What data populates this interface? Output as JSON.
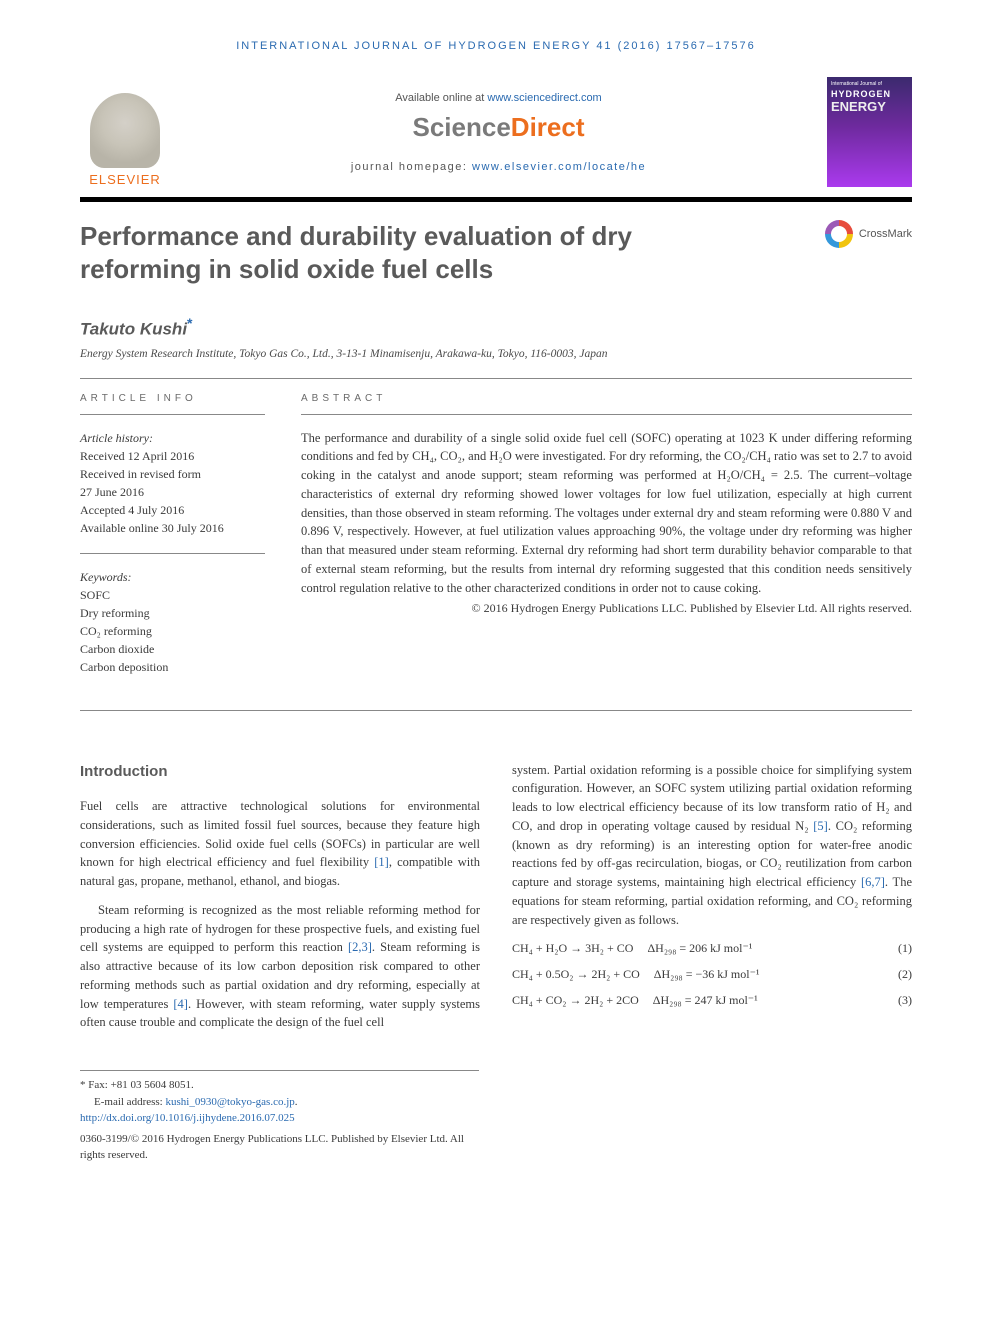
{
  "journal_header": "INTERNATIONAL JOURNAL OF HYDROGEN ENERGY 41 (2016) 17567–17576",
  "available_prefix": "Available online at ",
  "available_link": "www.sciencedirect.com",
  "sd_logo_1": "Science",
  "sd_logo_2": "Direct",
  "homepage_prefix": "journal homepage: ",
  "homepage_link": "www.elsevier.com/locate/he",
  "elsevier_label": "ELSEVIER",
  "cover": {
    "top": "International Journal of",
    "t1": "HYDROGEN",
    "t2": "ENERGY"
  },
  "crossmark": "CrossMark",
  "title": "Performance and durability evaluation of dry reforming in solid oxide fuel cells",
  "author": "Takuto Kushi",
  "affiliation": "Energy System Research Institute, Tokyo Gas Co., Ltd., 3-13-1 Minamisenju, Arakawa-ku, Tokyo, 116-0003, Japan",
  "info_label": "ARTICLE INFO",
  "abs_label": "ABSTRACT",
  "history_label": "Article history:",
  "history": {
    "received": "Received 12 April 2016",
    "revised1": "Received in revised form",
    "revised2": "27 June 2016",
    "accepted": "Accepted 4 July 2016",
    "online": "Available online 30 July 2016"
  },
  "keywords_label": "Keywords:",
  "keywords": [
    "SOFC",
    "Dry reforming",
    "CO₂ reforming",
    "Carbon dioxide",
    "Carbon deposition"
  ],
  "abstract": "The performance and durability of a single solid oxide fuel cell (SOFC) operating at 1023 K under differing reforming conditions and fed by CH₄, CO₂, and H₂O were investigated. For dry reforming, the CO₂/CH₄ ratio was set to 2.7 to avoid coking in the catalyst and anode support; steam reforming was performed at H₂O/CH₄ = 2.5. The current–voltage characteristics of external dry reforming showed lower voltages for low fuel utilization, especially at high current densities, than those observed in steam reforming. The voltages under external dry and steam reforming were 0.880 V and 0.896 V, respectively. However, at fuel utilization values approaching 90%, the voltage under dry reforming was higher than that measured under steam reforming. External dry reforming had short term durability behavior comparable to that of external steam reforming, but the results from internal dry reforming suggested that this condition needs sensitively control regulation relative to the other characterized conditions in order not to cause coking.",
  "abs_copyright": "© 2016 Hydrogen Energy Publications LLC. Published by Elsevier Ltd. All rights reserved.",
  "intro_heading": "Introduction",
  "intro_p1a": "Fuel cells are attractive technological solutions for environmental considerations, such as limited fossil fuel sources, because they feature high conversion efficiencies. Solid oxide fuel cells (SOFCs) in particular are well known for high electrical efficiency and fuel flexibility ",
  "intro_p1_ref1": "[1]",
  "intro_p1b": ", compatible with natural gas, propane, methanol, ethanol, and biogas.",
  "intro_p2a": "Steam reforming is recognized as the most reliable reforming method for producing a high rate of hydrogen for these prospective fuels, and existing fuel cell systems are equipped to perform this reaction ",
  "intro_p2_ref1": "[2,3]",
  "intro_p2b": ". Steam reforming is also attractive because of its low carbon deposition risk compared to other reforming methods such as partial oxidation and dry reforming, especially at low temperatures ",
  "intro_p2_ref2": "[4]",
  "intro_p2c": ". However, with steam reforming, water supply systems often cause trouble and complicate the design of the fuel cell",
  "col2_p1a": "system. Partial oxidation reforming is a possible choice for simplifying system configuration. However, an SOFC system utilizing partial oxidation reforming leads to low electrical efficiency because of its low transform ratio of H₂ and CO, and drop in operating voltage caused by residual N₂ ",
  "col2_p1_ref1": "[5]",
  "col2_p1b": ". CO₂ reforming (known as dry reforming) is an interesting option for water-free anodic reactions fed by off-gas recirculation, biogas, or CO₂ reutilization from carbon capture and storage systems, maintaining high electrical efficiency ",
  "col2_p1_ref2": "[6,7]",
  "col2_p1c": ". The equations for steam reforming, partial oxidation reforming, and CO₂ reforming are respectively given as follows.",
  "eq1_lhs": "CH₄ + H₂O → 3H₂ + CO",
  "eq1_dh": "ΔH₂₉₈ = 206 kJ mol⁻¹",
  "eq1_num": "(1)",
  "eq2_lhs": "CH₄ + 0.5O₂ → 2H₂ + CO",
  "eq2_dh": "ΔH₂₉₈ = −36 kJ mol⁻¹",
  "eq2_num": "(2)",
  "eq3_lhs": "CH₄ + CO₂ → 2H₂ + 2CO",
  "eq3_dh": "ΔH₂₉₈ = 247 kJ mol⁻¹",
  "eq3_num": "(3)",
  "footer": {
    "fax_label": "* Fax: ",
    "fax": "+81 03 5604 8051.",
    "email_label": "E-mail address: ",
    "email": "kushi_0930@tokyo-gas.co.jp",
    "email_suffix": ".",
    "doi": "http://dx.doi.org/10.1016/j.ijhydene.2016.07.025",
    "copy": "0360-3199/© 2016 Hydrogen Energy Publications LLC. Published by Elsevier Ltd. All rights reserved."
  }
}
